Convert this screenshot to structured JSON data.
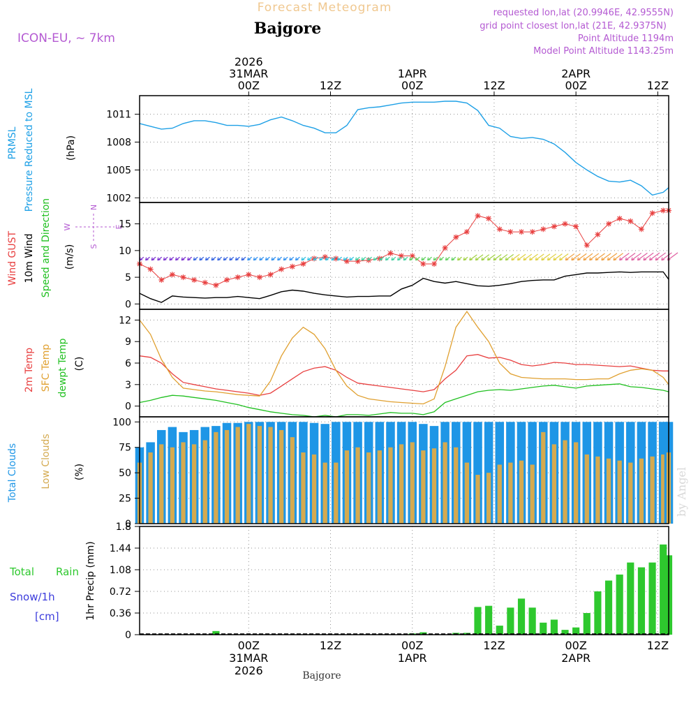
{
  "header": {
    "subtitle": "Forecast Meteogram",
    "location": "Bajgore",
    "model": "ICON-EU, ~ 7km",
    "requested": "requested lon,lat (20.9946E, 42.9555N)",
    "grid_point": "grid point closest lon,lat (21E, 42.9375N)",
    "point_altitude": "Point Altitude 1194m",
    "model_altitude": "Model Point Altitude 1143.25m",
    "footer_location": "Bajgore",
    "watermark": "by Angel"
  },
  "colors": {
    "pressure": "#1ea0e6",
    "gust": "#e84040",
    "wind": "#000000",
    "temp": "#e84040",
    "sfc": "#e0a030",
    "dewpt": "#20c020",
    "total_clouds": "#1e96e6",
    "low_clouds": "#d4aa50",
    "rain": "#2ec82e",
    "snow": "#3c3cdc",
    "legend_purple": "#b45ad2",
    "gridline": "#909090"
  },
  "time_axis": {
    "start_hour": -20,
    "end_hour": 77,
    "top_ticks": [
      {
        "hour": 0,
        "lines": [
          "2026",
          "31MAR",
          "00Z"
        ]
      },
      {
        "hour": 15,
        "lines": [
          "12Z"
        ]
      },
      {
        "hour": 30,
        "lines": [
          "1APR",
          "00Z"
        ]
      },
      {
        "hour": 45,
        "lines": [
          "12Z"
        ]
      },
      {
        "hour": 60,
        "lines": [
          "2APR",
          "00Z"
        ]
      },
      {
        "hour": 75,
        "lines": [
          "12Z"
        ]
      }
    ],
    "bottom_ticks": [
      {
        "hour": 0,
        "lines": [
          "00Z",
          "31MAR",
          "2026"
        ]
      },
      {
        "hour": 15,
        "lines": [
          "12Z"
        ]
      },
      {
        "hour": 30,
        "lines": [
          "00Z",
          "1APR"
        ]
      },
      {
        "hour": 45,
        "lines": [
          "12Z"
        ]
      },
      {
        "hour": 60,
        "lines": [
          "00Z",
          "2APR"
        ]
      },
      {
        "hour": 75,
        "lines": [
          "12Z"
        ]
      }
    ]
  },
  "panel_labels": {
    "pressure": {
      "line1": "PRMSL",
      "line2": "Pressure Reduced to MSL",
      "unit": "(hPa)"
    },
    "wind": {
      "gust": "Wind GUST",
      "wind": "10m Wind",
      "dir": "Speed and Direction",
      "unit": "(m/s)",
      "compass_n": "N",
      "compass_s": "S",
      "compass_e": "E",
      "compass_w": "W"
    },
    "temp": {
      "t2m": "2m Temp",
      "sfc": "SFC Temp",
      "dew": "dewpt Temp",
      "unit": "(C)"
    },
    "clouds": {
      "total": "Total Clouds",
      "low": "Low Clouds",
      "unit": "(%)"
    },
    "precip": {
      "rain_label": "Total",
      "rain_label2": "Rain",
      "snow_label": "Snow/1h",
      "snow_unit": "[cm]",
      "axis_label": "1hr Precip (mm)"
    }
  },
  "chart_data": [
    {
      "type": "line",
      "title": "PRMSL Pressure Reduced to MSL",
      "ylabel": "(hPa)",
      "ylim": [
        1001.5,
        1013
      ],
      "yticks": [
        "1002",
        "1005",
        "1008",
        "1011"
      ],
      "x": [
        -20,
        -18,
        -16,
        -14,
        -12,
        -10,
        -8,
        -6,
        -4,
        -2,
        0,
        2,
        4,
        6,
        8,
        10,
        12,
        14,
        16,
        18,
        20,
        22,
        24,
        26,
        28,
        30,
        32,
        34,
        36,
        38,
        40,
        42,
        44,
        46,
        48,
        50,
        52,
        54,
        56,
        58,
        60,
        62,
        64,
        66,
        68,
        70,
        72,
        74,
        76,
        77
      ],
      "series": [
        {
          "name": "PRMSL",
          "values": [
            1010.0,
            1009.7,
            1009.4,
            1009.5,
            1010.0,
            1010.3,
            1010.3,
            1010.1,
            1009.8,
            1009.8,
            1009.7,
            1009.9,
            1010.4,
            1010.7,
            1010.3,
            1009.8,
            1009.5,
            1009.0,
            1009.0,
            1009.8,
            1011.5,
            1011.7,
            1011.8,
            1012.0,
            1012.2,
            1012.3,
            1012.3,
            1012.3,
            1012.4,
            1012.4,
            1012.2,
            1011.4,
            1009.8,
            1009.5,
            1008.6,
            1008.4,
            1008.5,
            1008.3,
            1007.8,
            1006.9,
            1005.8,
            1005.0,
            1004.3,
            1003.8,
            1003.7,
            1003.9,
            1003.3,
            1002.3,
            1002.6,
            1003.1
          ]
        }
      ]
    },
    {
      "type": "line",
      "title": "Wind GUST / 10m Wind Speed and Direction",
      "ylabel": "(m/s)",
      "ylim": [
        -1,
        19
      ],
      "yticks": [
        "0",
        "5",
        "10",
        "15"
      ],
      "x": [
        -20,
        -18,
        -16,
        -14,
        -12,
        -10,
        -8,
        -6,
        -4,
        -2,
        0,
        2,
        4,
        6,
        8,
        10,
        12,
        14,
        16,
        18,
        20,
        22,
        24,
        26,
        28,
        30,
        32,
        34,
        36,
        38,
        40,
        42,
        44,
        46,
        48,
        50,
        52,
        54,
        56,
        58,
        60,
        62,
        64,
        66,
        68,
        70,
        72,
        74,
        76,
        77
      ],
      "series": [
        {
          "name": "Wind GUST",
          "values": [
            7.5,
            6.5,
            4.5,
            5.5,
            5.0,
            4.5,
            4.0,
            3.5,
            4.5,
            5.0,
            5.5,
            5.0,
            5.5,
            6.5,
            7.0,
            7.5,
            8.5,
            8.8,
            8.5,
            8.0,
            8.0,
            8.2,
            8.5,
            9.5,
            9.0,
            9.0,
            7.5,
            7.5,
            10.5,
            12.5,
            13.5,
            16.5,
            16.0,
            14.0,
            13.5,
            13.5,
            13.5,
            14.0,
            14.5,
            15.0,
            14.5,
            11.0,
            13.0,
            15.0,
            16.0,
            15.5,
            14.0,
            17.0,
            17.5,
            17.5
          ]
        },
        {
          "name": "10m Wind",
          "values": [
            2.0,
            1.0,
            0.3,
            1.5,
            1.3,
            1.2,
            1.1,
            1.2,
            1.2,
            1.4,
            1.2,
            1.0,
            1.6,
            2.3,
            2.6,
            2.4,
            2.0,
            1.7,
            1.5,
            1.3,
            1.4,
            1.4,
            1.5,
            1.5,
            2.8,
            3.5,
            4.8,
            4.2,
            3.9,
            4.2,
            3.8,
            3.4,
            3.3,
            3.5,
            3.8,
            4.2,
            4.4,
            4.5,
            4.5,
            5.2,
            5.5,
            5.8,
            5.8,
            5.9,
            6.0,
            5.9,
            6.0,
            6.0,
            6.0,
            4.6
          ]
        }
      ]
    },
    {
      "type": "line",
      "title": "2m Temp / SFC Temp / dewpt Temp",
      "ylabel": "(C)",
      "ylim": [
        -1.5,
        13.5
      ],
      "yticks": [
        "0",
        "3",
        "6",
        "9",
        "12"
      ],
      "x": [
        -20,
        -18,
        -16,
        -14,
        -12,
        -10,
        -8,
        -6,
        -4,
        -2,
        0,
        2,
        4,
        6,
        8,
        10,
        12,
        14,
        16,
        18,
        20,
        22,
        24,
        26,
        28,
        30,
        32,
        34,
        36,
        38,
        40,
        42,
        44,
        46,
        48,
        50,
        52,
        54,
        56,
        58,
        60,
        62,
        64,
        66,
        68,
        70,
        72,
        74,
        76,
        77
      ],
      "series": [
        {
          "name": "2m Temp",
          "values": [
            7.0,
            6.8,
            6.0,
            4.5,
            3.3,
            3.0,
            2.7,
            2.4,
            2.2,
            2.0,
            1.8,
            1.5,
            1.8,
            2.8,
            3.8,
            4.8,
            5.3,
            5.5,
            5.0,
            4.0,
            3.2,
            3.0,
            2.8,
            2.6,
            2.4,
            2.2,
            2.0,
            2.3,
            3.8,
            5.0,
            7.0,
            7.2,
            6.7,
            6.8,
            6.4,
            5.8,
            5.6,
            5.8,
            6.1,
            6.0,
            5.8,
            5.8,
            5.7,
            5.6,
            5.5,
            5.6,
            5.3,
            5.0,
            4.9,
            4.9
          ]
        },
        {
          "name": "SFC Temp",
          "values": [
            12.0,
            10.0,
            6.5,
            4.0,
            2.5,
            2.3,
            2.1,
            2.0,
            1.8,
            1.6,
            1.5,
            1.4,
            3.5,
            7.0,
            9.5,
            11.0,
            10.0,
            8.0,
            5.0,
            2.8,
            1.5,
            1.0,
            0.8,
            0.6,
            0.5,
            0.4,
            0.3,
            1.0,
            5.5,
            11.0,
            13.2,
            11.0,
            9.0,
            6.0,
            4.5,
            4.0,
            3.9,
            3.8,
            3.8,
            3.8,
            3.7,
            3.7,
            3.8,
            3.8,
            4.5,
            5.0,
            5.2,
            5.0,
            4.0,
            3.0
          ]
        },
        {
          "name": "dewpt Temp",
          "values": [
            0.5,
            0.8,
            1.2,
            1.5,
            1.4,
            1.2,
            1.0,
            0.8,
            0.5,
            0.2,
            -0.2,
            -0.5,
            -0.8,
            -1.0,
            -1.2,
            -1.3,
            -1.5,
            -1.3,
            -1.5,
            -1.2,
            -1.2,
            -1.3,
            -1.1,
            -0.9,
            -1.0,
            -1.0,
            -1.2,
            -0.8,
            0.5,
            1.0,
            1.5,
            2.0,
            2.2,
            2.3,
            2.2,
            2.4,
            2.6,
            2.8,
            2.9,
            2.7,
            2.5,
            2.8,
            2.9,
            3.0,
            3.1,
            2.7,
            2.6,
            2.4,
            2.2,
            2.0
          ]
        }
      ]
    },
    {
      "type": "bar",
      "title": "Total Clouds / Low Clouds",
      "ylabel": "(%)",
      "ylim": [
        0,
        105
      ],
      "yticks": [
        "0",
        "25",
        "50",
        "75",
        "100"
      ],
      "x": [
        -20,
        -18,
        -16,
        -14,
        -12,
        -10,
        -8,
        -6,
        -4,
        -2,
        0,
        2,
        4,
        6,
        8,
        10,
        12,
        14,
        16,
        18,
        20,
        22,
        24,
        26,
        28,
        30,
        32,
        34,
        36,
        38,
        40,
        42,
        44,
        46,
        48,
        50,
        52,
        54,
        56,
        58,
        60,
        62,
        64,
        66,
        68,
        70,
        72,
        74,
        76,
        77
      ],
      "series": [
        {
          "name": "Total Clouds",
          "values": [
            75,
            80,
            92,
            95,
            90,
            92,
            95,
            96,
            99,
            99,
            100,
            100,
            100,
            100,
            100,
            100,
            99,
            98,
            100,
            100,
            100,
            100,
            100,
            100,
            100,
            100,
            98,
            96,
            100,
            100,
            100,
            100,
            100,
            100,
            100,
            100,
            100,
            100,
            100,
            100,
            100,
            100,
            100,
            100,
            100,
            100,
            100,
            100,
            100,
            100
          ]
        },
        {
          "name": "Low Clouds",
          "values": [
            60,
            70,
            78,
            75,
            80,
            78,
            82,
            90,
            92,
            95,
            98,
            96,
            95,
            92,
            85,
            70,
            68,
            60,
            60,
            72,
            75,
            70,
            72,
            75,
            78,
            80,
            72,
            74,
            80,
            75,
            60,
            48,
            50,
            58,
            60,
            62,
            58,
            90,
            78,
            82,
            80,
            68,
            66,
            64,
            62,
            60,
            64,
            66,
            68,
            70
          ]
        }
      ]
    },
    {
      "type": "bar",
      "title": "Total Rain / Snow 1h",
      "ylabel": "1hr Precip (mm)",
      "ylim": [
        0,
        1.8
      ],
      "yticks": [
        "0",
        "0.36",
        "0.72",
        "1.08",
        "1.44",
        "1.8"
      ],
      "x": [
        -20,
        -18,
        -16,
        -14,
        -12,
        -10,
        -8,
        -6,
        -4,
        -2,
        0,
        2,
        4,
        6,
        8,
        10,
        12,
        14,
        16,
        18,
        20,
        22,
        24,
        26,
        28,
        30,
        32,
        34,
        36,
        38,
        40,
        42,
        44,
        46,
        48,
        50,
        52,
        54,
        56,
        58,
        60,
        62,
        64,
        66,
        68,
        70,
        72,
        74,
        76,
        77
      ],
      "series": [
        {
          "name": "Total Rain",
          "values": [
            0,
            0,
            0,
            0,
            0,
            0,
            0,
            0.06,
            0,
            0,
            0,
            0,
            0,
            0,
            0,
            0,
            0,
            0,
            0,
            0,
            0,
            0,
            0,
            0,
            0,
            0.02,
            0.04,
            0,
            0,
            0.03,
            0.03,
            0.46,
            0.48,
            0.15,
            0.45,
            0.6,
            0.45,
            0.2,
            0.25,
            0.08,
            0.12,
            0.36,
            0.72,
            0.9,
            1.0,
            1.2,
            1.12,
            1.2,
            1.5,
            1.32
          ]
        },
        {
          "name": "Snow/1h",
          "values": [
            0,
            0,
            0,
            0,
            0,
            0,
            0,
            0,
            0,
            0,
            0,
            0,
            0,
            0,
            0,
            0,
            0,
            0,
            0,
            0,
            0,
            0,
            0,
            0,
            0,
            0,
            0,
            0,
            0,
            0,
            0,
            0,
            0,
            0,
            0,
            0,
            0,
            0,
            0,
            0,
            0,
            0,
            0,
            0,
            0,
            0,
            0,
            0,
            0,
            0
          ]
        }
      ]
    }
  ]
}
